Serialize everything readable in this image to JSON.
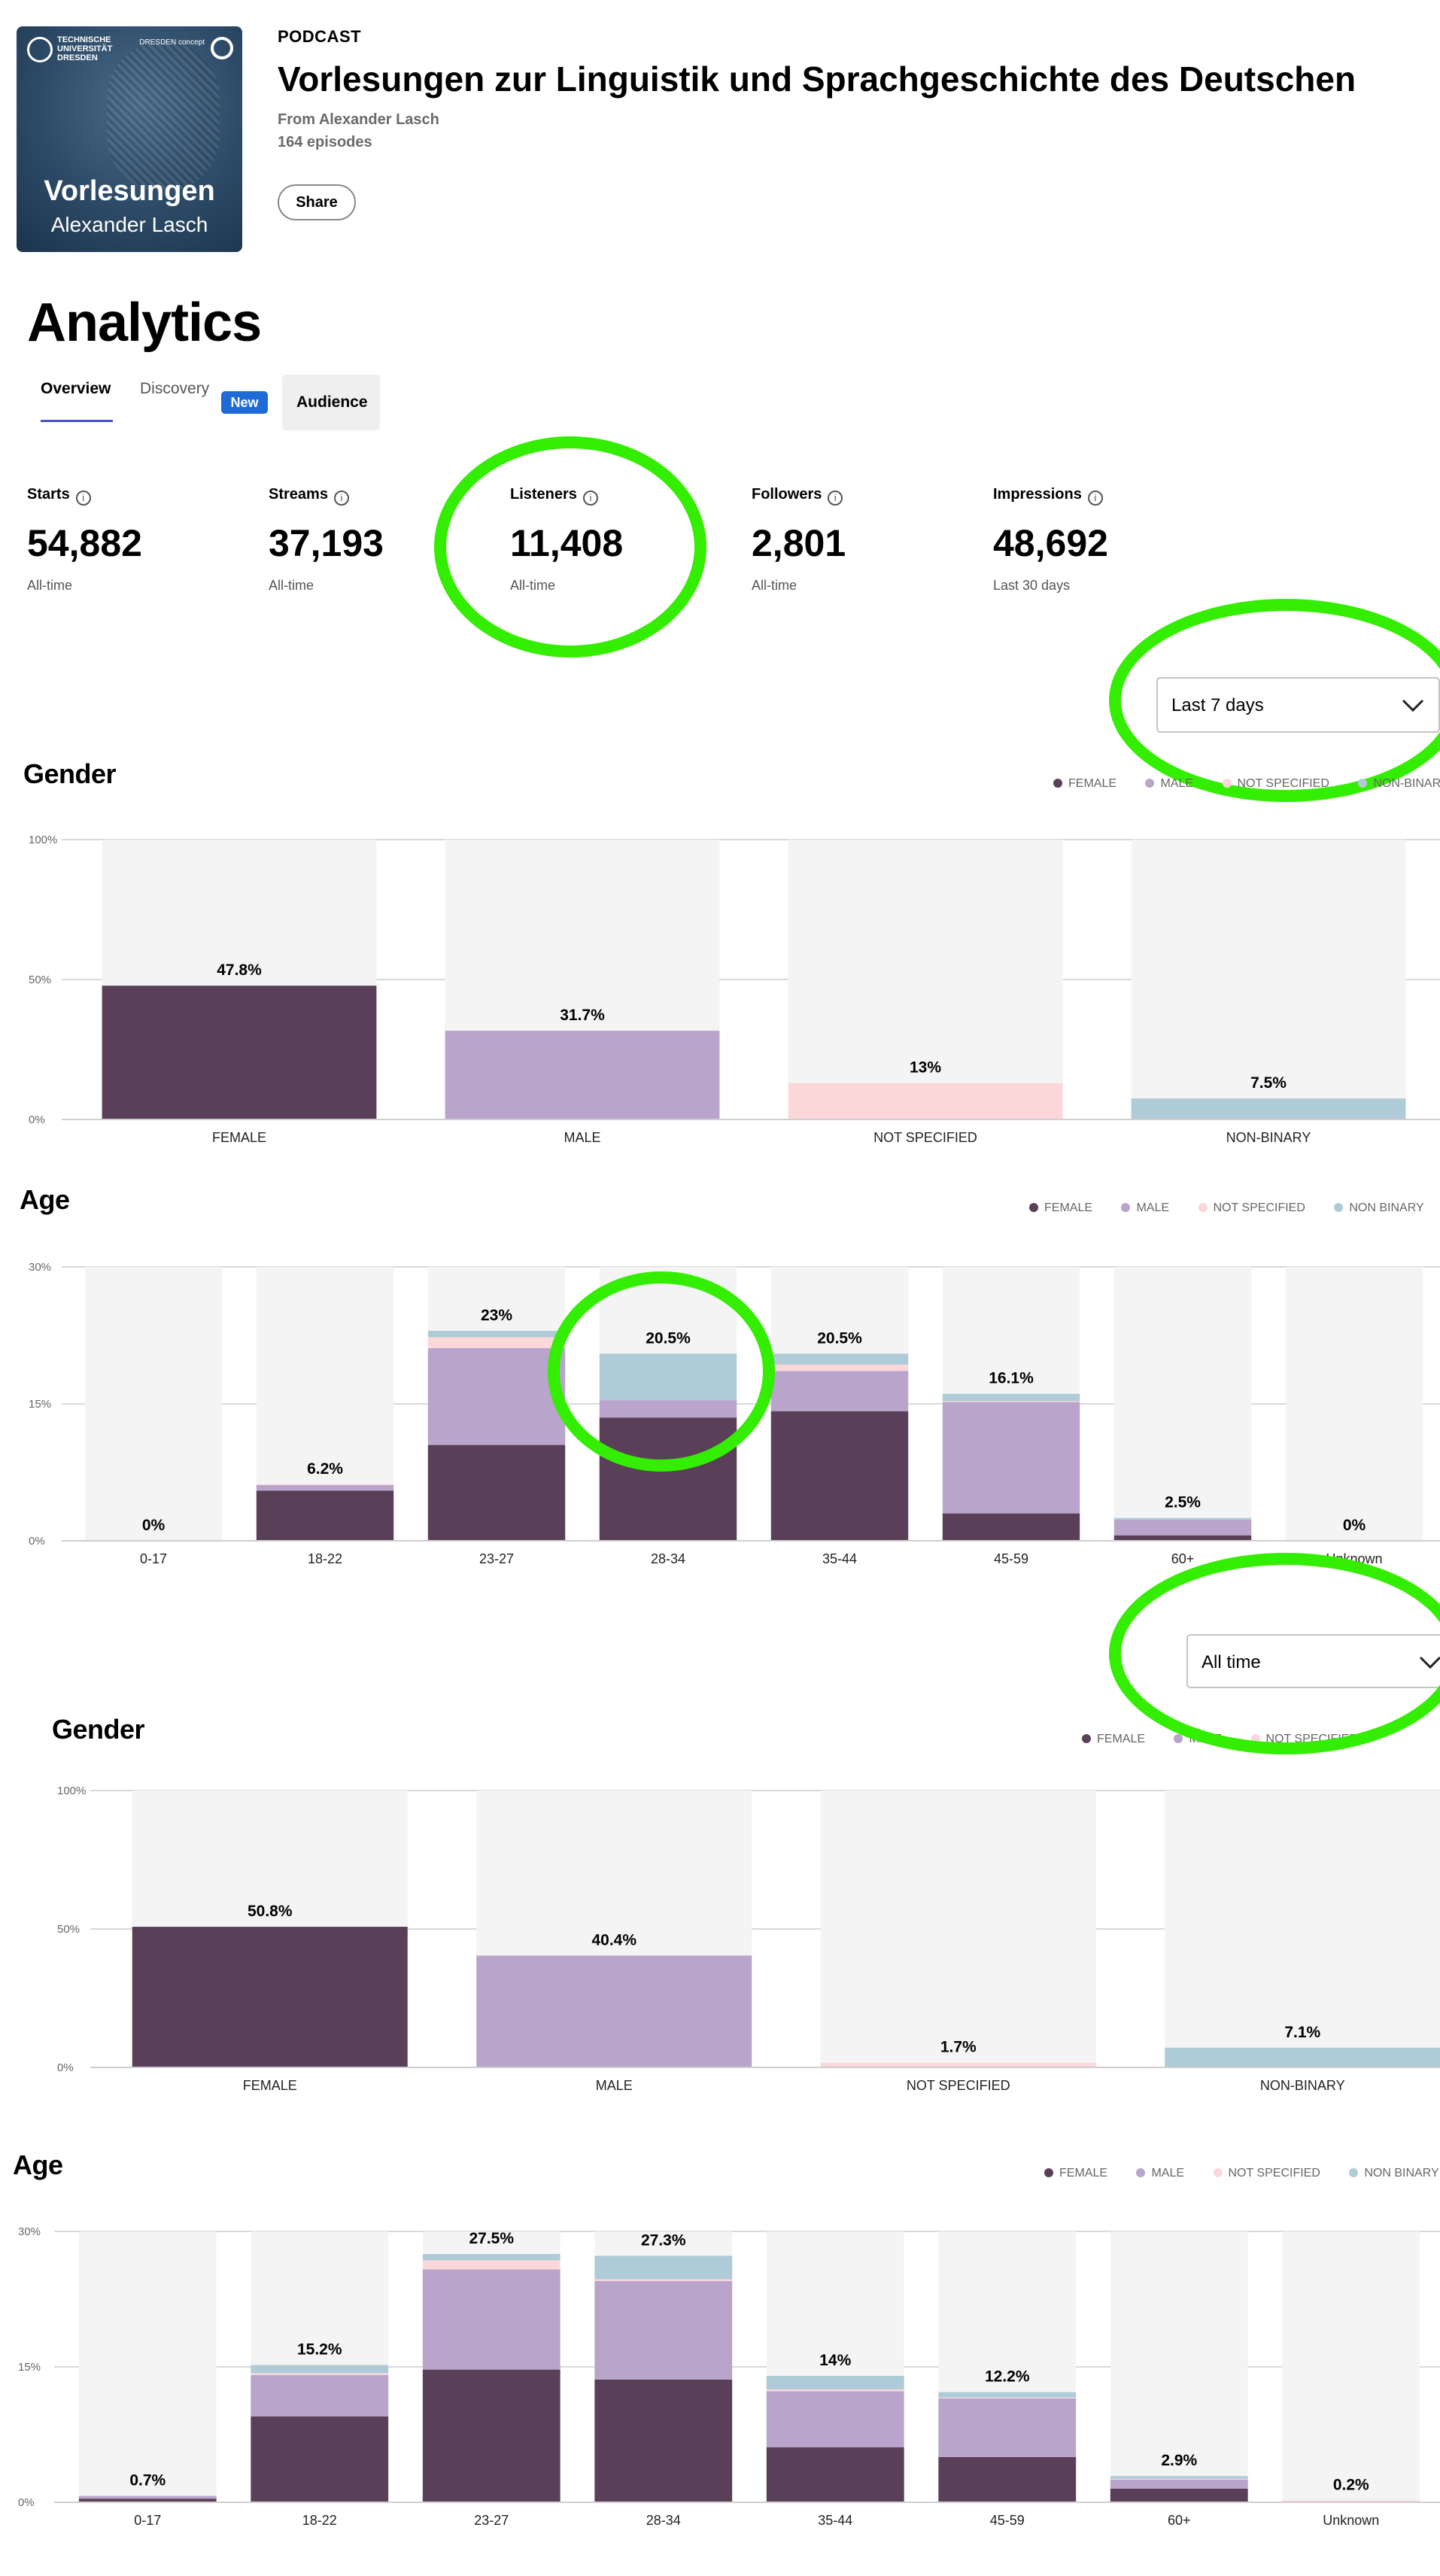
{
  "header": {
    "kicker": "PODCAST",
    "title": "Vorlesungen zur Linguistik und Sprachgeschichte des Deutschen",
    "author": "From Alexander Lasch",
    "episodes": "164 episodes",
    "share_label": "Share",
    "cover": {
      "university": "TECHNISCHE UNIVERSITÄT DRESDEN",
      "brand": "DRESDEN concept",
      "title": "Vorlesungen",
      "subtitle": "Alexander Lasch"
    }
  },
  "page_title": "Analytics",
  "tabs": [
    {
      "label": "Overview",
      "active": true
    },
    {
      "label": "Discovery",
      "badge": "New"
    },
    {
      "label": "Audience"
    }
  ],
  "metrics": [
    {
      "label": "Starts",
      "value": "54,882",
      "sub": "All-time"
    },
    {
      "label": "Streams",
      "value": "37,193",
      "sub": "All-time"
    },
    {
      "label": "Listeners",
      "value": "11,408",
      "sub": "All-time"
    },
    {
      "label": "Followers",
      "value": "2,801",
      "sub": "All-time"
    },
    {
      "label": "Impressions",
      "value": "48,692",
      "sub": "Last 30 days"
    }
  ],
  "filters": {
    "range_1": "Last 7 days",
    "range_2": "All time"
  },
  "legend": {
    "female": "FEMALE",
    "male": "MALE",
    "not_specified": "NOT SPECIFIED",
    "non_binary_gender": "NON-BINARY",
    "non_binary_age": "NON BINARY"
  },
  "sections": {
    "gender_title": "Gender",
    "age_title": "Age"
  },
  "colors": {
    "female": "#5a3f58",
    "male": "#b9a4cb",
    "not_specified": "#fcd7da",
    "non_binary": "#aecbd7",
    "track": "#f4f4f4",
    "annotation": "#33ee00"
  },
  "chart_data": [
    {
      "type": "bar",
      "title": "Gender",
      "period": "Last 7 days",
      "categories": [
        "FEMALE",
        "MALE",
        "NOT SPECIFIED",
        "NON-BINARY"
      ],
      "values": [
        47.8,
        31.7,
        13,
        7.5
      ],
      "labels": [
        "47.8%",
        "31.7%",
        "13%",
        "7.5%"
      ],
      "yticks": [
        "0%",
        "50%",
        "100%"
      ],
      "ylim": [
        0,
        100
      ]
    },
    {
      "type": "bar",
      "stacked": true,
      "title": "Age",
      "period": "Last 7 days",
      "categories": [
        "0-17",
        "18-22",
        "23-27",
        "28-34",
        "35-44",
        "45-59",
        "60+",
        "Unknown"
      ],
      "totals": [
        "0%",
        "6.2%",
        "23%",
        "20.5%",
        "20.5%",
        "16.1%",
        "2.5%",
        "0%"
      ],
      "series": [
        {
          "name": "FEMALE",
          "values": [
            0,
            5.5,
            10.5,
            13.5,
            14.2,
            3.0,
            0.6,
            0
          ]
        },
        {
          "name": "MALE",
          "values": [
            0,
            0.6,
            10.6,
            1.9,
            4.4,
            12.2,
            1.7,
            0
          ]
        },
        {
          "name": "NOT SPECIFIED",
          "values": [
            0,
            0.1,
            1.2,
            0,
            0.7,
            0.1,
            0,
            0
          ]
        },
        {
          "name": "NON BINARY",
          "values": [
            0,
            0,
            0.7,
            5.1,
            1.2,
            0.8,
            0.2,
            0
          ]
        }
      ],
      "yticks": [
        "0%",
        "15%",
        "30%"
      ],
      "ylim": [
        0,
        30
      ]
    },
    {
      "type": "bar",
      "title": "Gender",
      "period": "All time",
      "categories": [
        "FEMALE",
        "MALE",
        "NOT SPECIFIED",
        "NON-BINARY"
      ],
      "values": [
        50.8,
        40.4,
        1.7,
        7.1
      ],
      "labels": [
        "50.8%",
        "40.4%",
        "1.7%",
        "7.1%"
      ],
      "yticks": [
        "0%",
        "50%",
        "100%"
      ],
      "ylim": [
        0,
        100
      ]
    },
    {
      "type": "bar",
      "stacked": true,
      "title": "Age",
      "period": "All time",
      "categories": [
        "0-17",
        "18-22",
        "23-27",
        "28-34",
        "35-44",
        "45-59",
        "60+",
        "Unknown"
      ],
      "totals": [
        "0.7%",
        "15.2%",
        "27.5%",
        "27.3%",
        "14%",
        "12.2%",
        "2.9%",
        "0.2%"
      ],
      "series": [
        {
          "name": "FEMALE",
          "values": [
            0.4,
            9.5,
            14.7,
            13.6,
            6.1,
            5.0,
            1.5,
            0
          ]
        },
        {
          "name": "MALE",
          "values": [
            0.3,
            4.6,
            11.1,
            10.9,
            6.2,
            6.5,
            1.0,
            0
          ]
        },
        {
          "name": "NOT SPECIFIED",
          "values": [
            0,
            0.2,
            1.0,
            0.2,
            0.2,
            0.1,
            0.1,
            0.2
          ]
        },
        {
          "name": "NON BINARY",
          "values": [
            0,
            0.9,
            0.7,
            2.6,
            1.5,
            0.6,
            0.3,
            0
          ]
        }
      ],
      "yticks": [
        "0%",
        "15%",
        "30%"
      ],
      "ylim": [
        0,
        30
      ]
    }
  ]
}
